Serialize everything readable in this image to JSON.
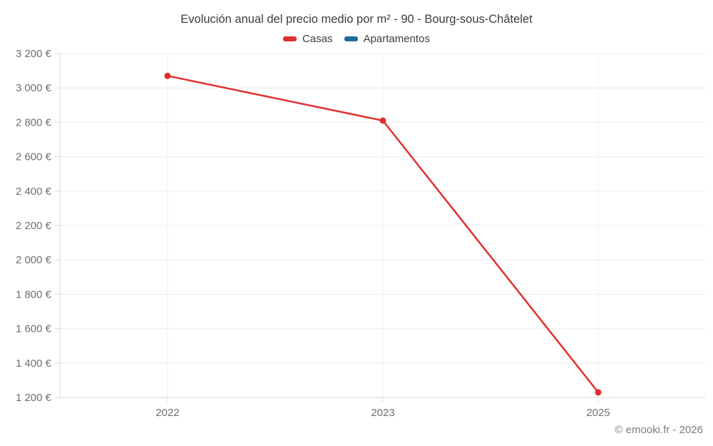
{
  "chart_data": {
    "type": "line",
    "title": "Evolución anual del precio medio por m² - 90 - Bourg-sous-Châtelet",
    "categories": [
      "2022",
      "2023",
      "2025"
    ],
    "series": [
      {
        "name": "Casas",
        "color": "#e03131",
        "values": [
          3070,
          2810,
          1230
        ]
      },
      {
        "name": "Apartamentos",
        "color": "#1a6d9e",
        "values": []
      }
    ],
    "ylim": [
      1200,
      3200
    ],
    "ytick_step": 200,
    "ytick_labels": [
      "1 200 €",
      "1 400 €",
      "1 600 €",
      "1 800 €",
      "2 000 €",
      "2 200 €",
      "2 400 €",
      "2 600 €",
      "2 800 €",
      "3 000 €",
      "3 200 €"
    ],
    "grid": true,
    "legend_position": "top",
    "colors": {
      "grid_horizontal": "#ececec",
      "grid_vertical": "#efefef",
      "axis": "#d9d9d9",
      "tick_text": "#6f6f6f",
      "title_text": "#3c3c3c"
    }
  },
  "footer": {
    "copyright": "© emooki.fr - 2026"
  }
}
